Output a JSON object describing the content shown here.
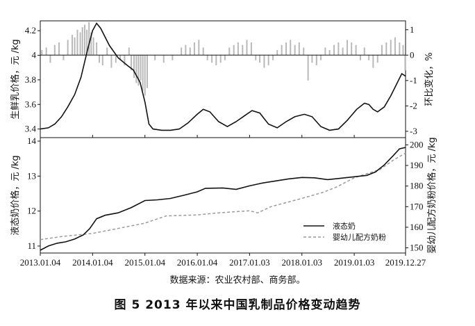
{
  "source_note": "数据来源：农业农村部、商务部。",
  "caption": "图 5  2013 年以来中国乳制品价格变动趋势",
  "chart_data": [
    {
      "type": "line",
      "panel": "top",
      "ylabel_left": "生鲜乳价格，元 /kg",
      "ylabel_right": "环比变化，%",
      "ylim_left": [
        3.33,
        4.28
      ],
      "ylim_right": [
        -3.25,
        1.35
      ],
      "yticks_left": [
        "3.4",
        "3.6",
        "3.8",
        "4",
        "4.2"
      ],
      "yticks_right": [
        "1",
        "0",
        "-1",
        "-2",
        "-3"
      ],
      "series": [
        {
          "axis": "left",
          "style": "solid",
          "points": [
            [
              "2013-01-04",
              3.4
            ],
            [
              "2013-03-01",
              3.41
            ],
            [
              "2013-04-15",
              3.44
            ],
            [
              "2013-06-01",
              3.5
            ],
            [
              "2013-07-15",
              3.58
            ],
            [
              "2013-09-01",
              3.68
            ],
            [
              "2013-10-15",
              3.82
            ],
            [
              "2013-12-01",
              4.05
            ],
            [
              "2014-01-04",
              4.2
            ],
            [
              "2014-02-01",
              4.26
            ],
            [
              "2014-03-01",
              4.22
            ],
            [
              "2014-05-01",
              4.08
            ],
            [
              "2014-07-01",
              3.98
            ],
            [
              "2014-09-01",
              3.92
            ],
            [
              "2014-10-15",
              3.88
            ],
            [
              "2014-12-01",
              3.78
            ],
            [
              "2015-01-04",
              3.62
            ],
            [
              "2015-02-01",
              3.44
            ],
            [
              "2015-03-01",
              3.4
            ],
            [
              "2015-05-01",
              3.39
            ],
            [
              "2015-07-01",
              3.39
            ],
            [
              "2015-09-01",
              3.4
            ],
            [
              "2015-11-01",
              3.45
            ],
            [
              "2016-01-04",
              3.52
            ],
            [
              "2016-02-15",
              3.56
            ],
            [
              "2016-04-01",
              3.54
            ],
            [
              "2016-06-01",
              3.46
            ],
            [
              "2016-08-01",
              3.42
            ],
            [
              "2016-10-01",
              3.46
            ],
            [
              "2016-12-01",
              3.51
            ],
            [
              "2017-01-20",
              3.55
            ],
            [
              "2017-03-15",
              3.53
            ],
            [
              "2017-05-15",
              3.44
            ],
            [
              "2017-07-15",
              3.41
            ],
            [
              "2017-09-15",
              3.46
            ],
            [
              "2017-11-15",
              3.5
            ],
            [
              "2018-01-20",
              3.52
            ],
            [
              "2018-03-15",
              3.5
            ],
            [
              "2018-05-15",
              3.42
            ],
            [
              "2018-07-15",
              3.39
            ],
            [
              "2018-09-15",
              3.4
            ],
            [
              "2018-11-15",
              3.47
            ],
            [
              "2019-01-20",
              3.56
            ],
            [
              "2019-03-15",
              3.61
            ],
            [
              "2019-04-15",
              3.6
            ],
            [
              "2019-05-15",
              3.56
            ],
            [
              "2019-06-15",
              3.54
            ],
            [
              "2019-08-01",
              3.58
            ],
            [
              "2019-09-15",
              3.67
            ],
            [
              "2019-11-01",
              3.78
            ],
            [
              "2019-12-01",
              3.85
            ],
            [
              "2019-12-27",
              3.83
            ]
          ]
        },
        {
          "axis": "right",
          "type": "bar",
          "style": "light-gray bars",
          "points": [
            [
              "2013-01-15",
              0.2
            ],
            [
              "2013-02-15",
              0.3
            ],
            [
              "2013-03-15",
              -0.3
            ],
            [
              "2013-04-15",
              0.4
            ],
            [
              "2013-05-15",
              0.5
            ],
            [
              "2013-06-15",
              -0.2
            ],
            [
              "2013-07-15",
              0.6
            ],
            [
              "2013-08-15",
              0.8
            ],
            [
              "2013-09-01",
              0.7
            ],
            [
              "2013-09-20",
              1.0
            ],
            [
              "2013-10-10",
              0.9
            ],
            [
              "2013-10-25",
              1.1
            ],
            [
              "2013-11-10",
              1.2
            ],
            [
              "2013-11-25",
              1.0
            ],
            [
              "2013-12-10",
              1.3
            ],
            [
              "2013-12-25",
              0.9
            ],
            [
              "2014-01-10",
              0.7
            ],
            [
              "2014-02-01",
              0.5
            ],
            [
              "2014-02-20",
              -0.3
            ],
            [
              "2014-03-15",
              -0.4
            ],
            [
              "2014-04-15",
              0.3
            ],
            [
              "2014-05-15",
              -0.5
            ],
            [
              "2014-06-15",
              -0.3
            ],
            [
              "2014-07-15",
              -0.2
            ],
            [
              "2014-08-15",
              -0.4
            ],
            [
              "2014-09-15",
              0.3
            ],
            [
              "2014-10-01",
              -0.6
            ],
            [
              "2014-10-20",
              -0.9
            ],
            [
              "2014-11-05",
              -1.1
            ],
            [
              "2014-11-20",
              -1.2
            ],
            [
              "2014-12-05",
              -1.0
            ],
            [
              "2014-12-20",
              -1.4
            ],
            [
              "2015-01-04",
              -1.6
            ],
            [
              "2015-01-20",
              -1.3
            ],
            [
              "2015-03-15",
              -0.2
            ],
            [
              "2015-05-15",
              -0.3
            ],
            [
              "2015-07-15",
              -0.2
            ],
            [
              "2015-09-15",
              0.3
            ],
            [
              "2015-10-15",
              0.4
            ],
            [
              "2015-11-15",
              0.3
            ],
            [
              "2015-12-15",
              0.5
            ],
            [
              "2016-01-15",
              0.6
            ],
            [
              "2016-02-15",
              0.3
            ],
            [
              "2016-03-15",
              -0.2
            ],
            [
              "2016-04-15",
              -0.3
            ],
            [
              "2016-05-15",
              -0.4
            ],
            [
              "2016-06-15",
              -0.3
            ],
            [
              "2016-07-15",
              -0.2
            ],
            [
              "2016-08-15",
              0.3
            ],
            [
              "2016-09-15",
              0.4
            ],
            [
              "2016-10-15",
              0.5
            ],
            [
              "2016-11-15",
              0.4
            ],
            [
              "2016-12-15",
              0.6
            ],
            [
              "2017-01-15",
              0.5
            ],
            [
              "2017-02-15",
              -0.2
            ],
            [
              "2017-03-15",
              -0.3
            ],
            [
              "2017-04-15",
              -0.5
            ],
            [
              "2017-05-15",
              -0.4
            ],
            [
              "2017-06-15",
              -0.2
            ],
            [
              "2017-07-15",
              0.2
            ],
            [
              "2017-08-15",
              0.4
            ],
            [
              "2017-09-15",
              0.5
            ],
            [
              "2017-10-15",
              0.6
            ],
            [
              "2017-11-15",
              0.4
            ],
            [
              "2017-12-15",
              0.5
            ],
            [
              "2018-01-15",
              0.3
            ],
            [
              "2018-02-15",
              -1.0
            ],
            [
              "2018-03-15",
              -0.3
            ],
            [
              "2018-04-15",
              -0.4
            ],
            [
              "2018-05-15",
              -0.2
            ],
            [
              "2018-06-15",
              0.3
            ],
            [
              "2018-07-15",
              0.2
            ],
            [
              "2018-08-15",
              0.4
            ],
            [
              "2018-09-15",
              0.5
            ],
            [
              "2018-10-15",
              0.3
            ],
            [
              "2018-11-15",
              0.6
            ],
            [
              "2018-12-15",
              0.5
            ],
            [
              "2019-01-15",
              0.4
            ],
            [
              "2019-02-15",
              -0.2
            ],
            [
              "2019-03-15",
              0.3
            ],
            [
              "2019-04-15",
              -0.2
            ],
            [
              "2019-05-15",
              -0.5
            ],
            [
              "2019-06-15",
              -0.3
            ],
            [
              "2019-07-15",
              0.4
            ],
            [
              "2019-08-15",
              0.5
            ],
            [
              "2019-09-15",
              0.6
            ],
            [
              "2019-10-15",
              0.7
            ],
            [
              "2019-11-15",
              0.5
            ],
            [
              "2019-12-10",
              0.4
            ],
            [
              "2019-12-24",
              -0.6
            ]
          ]
        }
      ]
    },
    {
      "type": "line",
      "panel": "bottom",
      "ylabel_left": "液态奶价格，元 /kg",
      "ylabel_right": "婴幼儿配方奶粉价格，元 /kg",
      "ylim_left": [
        10.8,
        14.1
      ],
      "ylim_right": [
        147.5,
        203.5
      ],
      "yticks_left": [
        "11",
        "12",
        "13",
        "14"
      ],
      "yticks_right": [
        "150",
        "160",
        "170",
        "180",
        "190",
        "200"
      ],
      "x_tick_labels": [
        "2013.01.04",
        "2014.01.04",
        "2015.01.04",
        "2016.01.04",
        "2017.01.03",
        "2018.01.03",
        "2019.01.03",
        "2019.12.27"
      ],
      "x_tick_dates": [
        "2013-01-04",
        "2014-01-04",
        "2015-01-04",
        "2016-01-04",
        "2017-01-03",
        "2018-01-03",
        "2019-01-03",
        "2019-12-27"
      ],
      "legend": [
        "液态奶",
        "婴幼儿配方奶粉"
      ],
      "legend_position": "lower right",
      "series": [
        {
          "name": "液态奶",
          "axis": "left",
          "style": "solid",
          "points": [
            [
              "2013-01-04",
              10.88
            ],
            [
              "2013-03-01",
              11.0
            ],
            [
              "2013-05-01",
              11.08
            ],
            [
              "2013-07-01",
              11.12
            ],
            [
              "2013-09-01",
              11.2
            ],
            [
              "2013-11-01",
              11.32
            ],
            [
              "2013-12-15",
              11.5
            ],
            [
              "2014-02-01",
              11.78
            ],
            [
              "2014-04-01",
              11.88
            ],
            [
              "2014-07-01",
              11.95
            ],
            [
              "2014-10-01",
              12.1
            ],
            [
              "2015-01-04",
              12.3
            ],
            [
              "2015-04-01",
              12.32
            ],
            [
              "2015-07-01",
              12.36
            ],
            [
              "2015-10-01",
              12.45
            ],
            [
              "2016-01-04",
              12.55
            ],
            [
              "2016-03-01",
              12.65
            ],
            [
              "2016-07-01",
              12.66
            ],
            [
              "2016-10-01",
              12.62
            ],
            [
              "2017-01-03",
              12.72
            ],
            [
              "2017-04-01",
              12.8
            ],
            [
              "2017-07-01",
              12.86
            ],
            [
              "2017-10-01",
              12.92
            ],
            [
              "2018-01-03",
              12.96
            ],
            [
              "2018-04-01",
              12.95
            ],
            [
              "2018-07-01",
              12.9
            ],
            [
              "2018-10-01",
              12.94
            ],
            [
              "2019-01-03",
              12.98
            ],
            [
              "2019-04-01",
              13.02
            ],
            [
              "2019-06-01",
              13.12
            ],
            [
              "2019-08-01",
              13.32
            ],
            [
              "2019-10-01",
              13.58
            ],
            [
              "2019-11-15",
              13.78
            ],
            [
              "2019-12-27",
              13.82
            ]
          ]
        },
        {
          "name": "婴幼儿配方奶粉",
          "axis": "right",
          "style": "dashed",
          "points": [
            [
              "2013-01-04",
              154.0
            ],
            [
              "2013-06-01",
              155.5
            ],
            [
              "2014-01-04",
              157.0
            ],
            [
              "2014-06-01",
              159.0
            ],
            [
              "2015-01-04",
              162.0
            ],
            [
              "2015-06-01",
              165.5
            ],
            [
              "2016-01-04",
              166.0
            ],
            [
              "2016-06-01",
              167.0
            ],
            [
              "2017-01-03",
              168.0
            ],
            [
              "2017-03-01",
              167.0
            ],
            [
              "2017-06-01",
              170.0
            ],
            [
              "2018-01-03",
              174.0
            ],
            [
              "2018-06-01",
              177.0
            ],
            [
              "2018-09-01",
              179.5
            ],
            [
              "2019-01-03",
              184.0
            ],
            [
              "2019-04-01",
              186.0
            ],
            [
              "2019-07-01",
              188.0
            ],
            [
              "2019-10-01",
              192.5
            ],
            [
              "2019-12-27",
              196.0
            ]
          ]
        }
      ]
    }
  ]
}
